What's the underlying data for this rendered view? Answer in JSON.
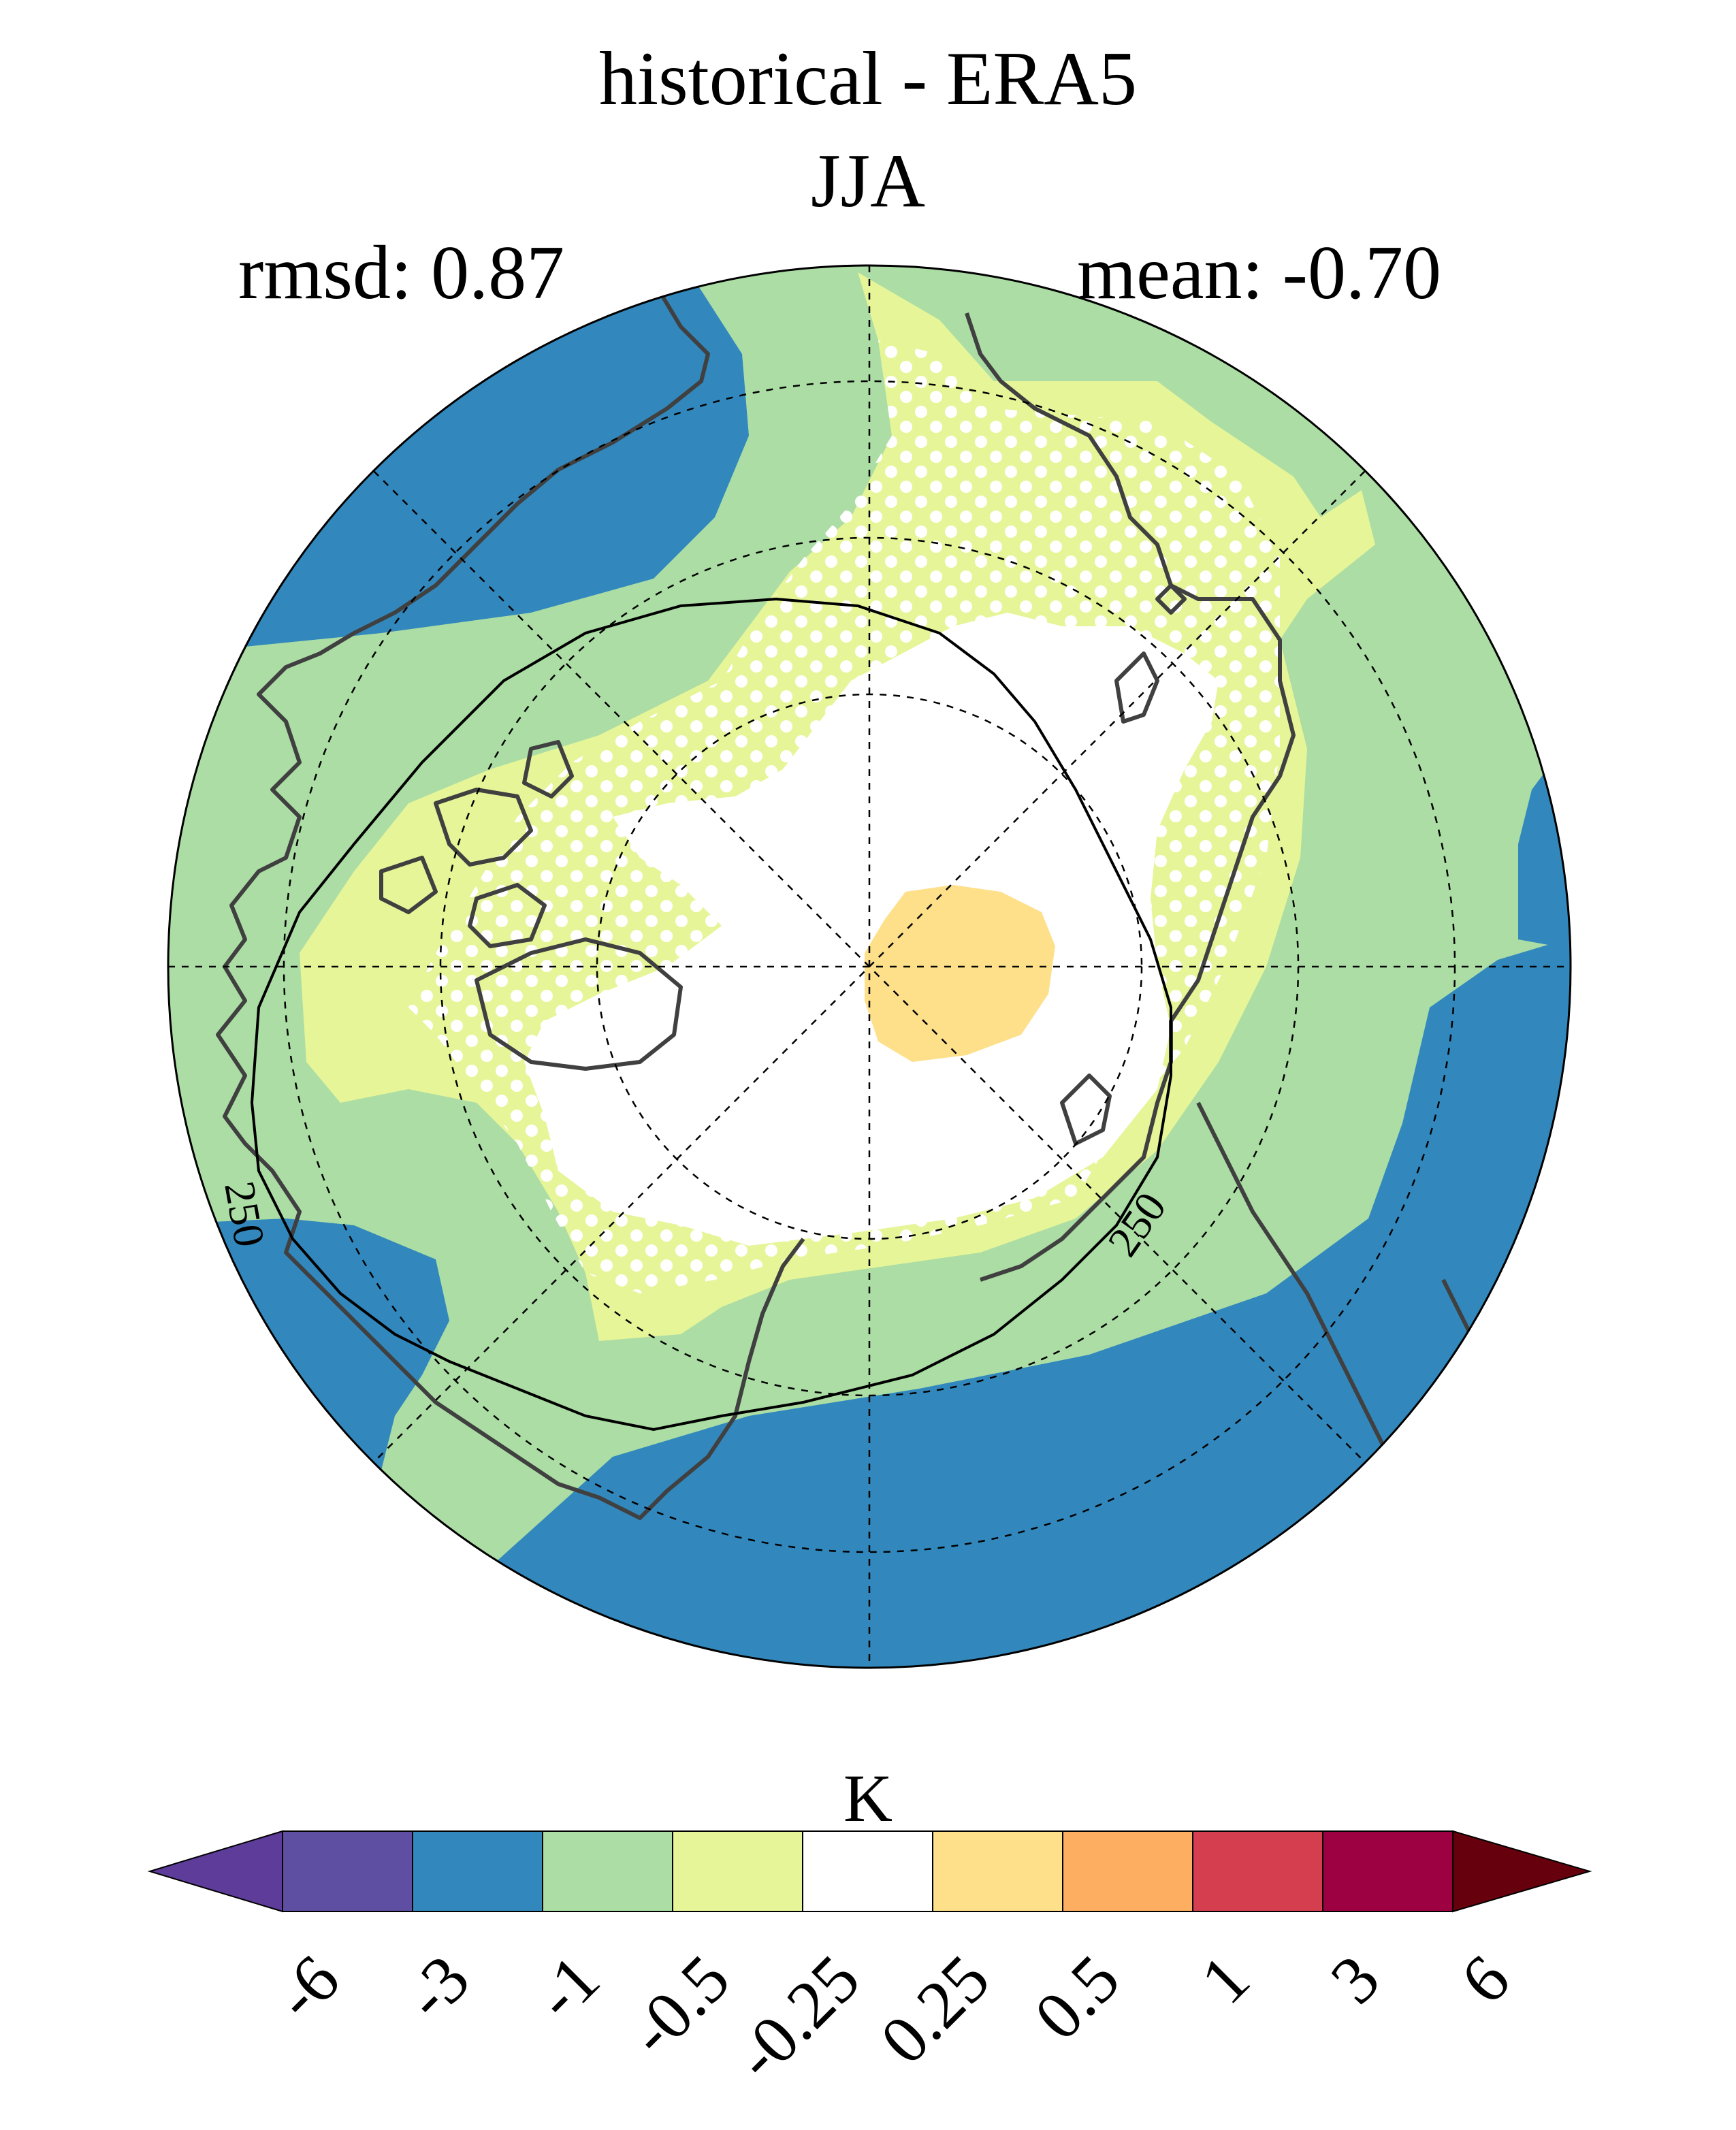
{
  "title": "historical - ERA5",
  "subtitle": "JJA",
  "stats": {
    "rmsd": "rmsd: 0.87",
    "mean": "mean: -0.70"
  },
  "map": {
    "projection": "north polar stereographic",
    "contour_label": "250",
    "stippling": "white dots"
  },
  "colorbar": {
    "unit": "K",
    "levels": [
      "-6",
      "-3",
      "-1",
      "-0.5",
      "-0.25",
      "0.25",
      "0.5",
      "1",
      "3",
      "6"
    ],
    "colors": [
      "#5e3c99",
      "#5e4fa2",
      "#3288bd",
      "#abdda4",
      "#e6f598",
      "#ffffff",
      "#fee08b",
      "#fdae61",
      "#d53e4f",
      "#9e0142",
      "#67000d"
    ]
  },
  "colors": {
    "deep_blue": "#3288bd",
    "light_green": "#abdda4",
    "pale_yellow": "#e6f598",
    "white": "#ffffff",
    "light_orange": "#fee08b",
    "coastline": "#404040"
  }
}
